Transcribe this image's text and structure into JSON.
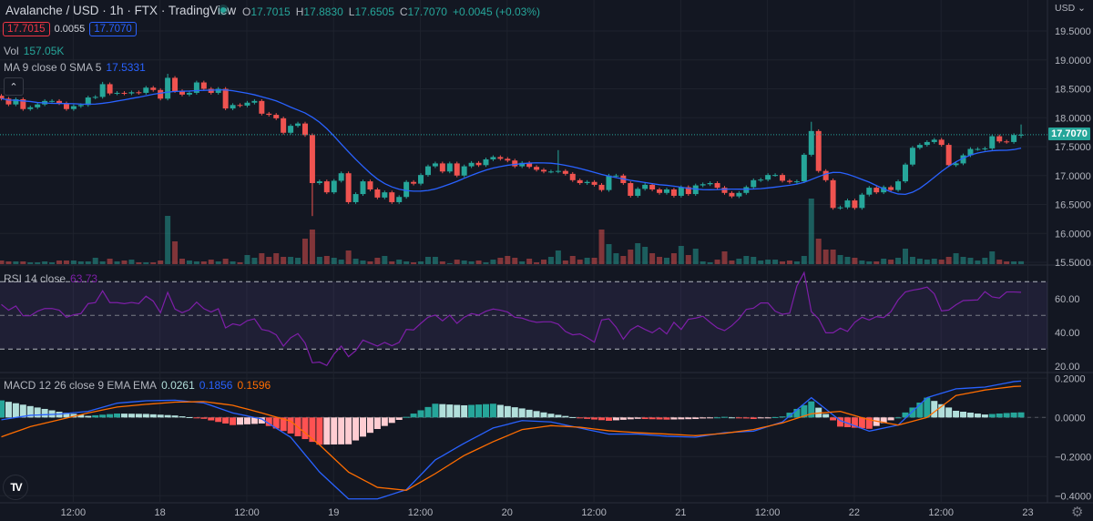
{
  "header": {
    "title": "Avalanche / USD · 1h · FTX · TradingView",
    "ohlc": {
      "o_label": "O",
      "o": "17.7015",
      "h_label": "H",
      "h": "17.8830",
      "l_label": "L",
      "l": "17.6505",
      "c_label": "C",
      "c": "17.7070",
      "change": "+0.0045 (+0.03%)"
    },
    "sell_price": "17.7015",
    "spread": "0.0055",
    "buy_price": "17.7070",
    "market_status_icon": "green-dot"
  },
  "legends": {
    "vol_label": "Vol",
    "vol_value": "157.05K",
    "ma_label": "MA 9 close 0 SMA 5",
    "ma_value": "17.5331",
    "rsi_label": "RSI 14 close",
    "rsi_value": "63.73",
    "macd_label": "MACD 12 26 close 9 EMA EMA",
    "macd_hist": "0.0261",
    "macd_value": "0.1856",
    "macd_signal": "0.1596",
    "collapse_icon": "chevron-up"
  },
  "axis": {
    "currency": "USD ⌄",
    "current_price": "17.7070",
    "logo": "TV",
    "settings_icon": "gear"
  },
  "colors": {
    "up": "#26a69a",
    "down": "#ef5350",
    "ma": "#2962ff",
    "rsi": "#7e1fa8",
    "macd": "#2962ff",
    "signal": "#ff6d00",
    "bg": "#131722"
  },
  "chart_data": [
    {
      "type": "candlestick",
      "title": "Avalanche / USD · 1h · FTX",
      "first_open": 18.38,
      "close": [
        18.33,
        18.23,
        18.32,
        18.15,
        18.18,
        18.23,
        18.29,
        18.29,
        18.25,
        18.15,
        18.2,
        18.22,
        18.35,
        18.36,
        18.58,
        18.42,
        18.43,
        18.42,
        18.44,
        18.43,
        18.52,
        18.48,
        18.33,
        18.69,
        18.46,
        18.4,
        18.43,
        18.61,
        18.5,
        18.43,
        18.5,
        18.16,
        18.22,
        18.21,
        18.26,
        18.29,
        18.07,
        18.05,
        17.99,
        17.74,
        17.86,
        17.9,
        17.7,
        16.87,
        16.9,
        16.71,
        16.91,
        17.04,
        16.54,
        16.68,
        16.9,
        16.76,
        16.62,
        16.71,
        16.54,
        16.63,
        16.89,
        16.86,
        17.01,
        17.16,
        17.21,
        17.07,
        17.21,
        17.0,
        17.16,
        17.22,
        17.18,
        17.28,
        17.32,
        17.29,
        17.26,
        17.16,
        17.22,
        17.15,
        17.1,
        17.07,
        17.07,
        17.08,
        17.03,
        16.92,
        16.87,
        16.89,
        16.84,
        16.75,
        17.0,
        17.0,
        16.87,
        16.65,
        16.77,
        16.84,
        16.76,
        16.7,
        16.76,
        16.65,
        16.8,
        16.68,
        16.83,
        16.85,
        16.87,
        16.79,
        16.7,
        16.64,
        16.7,
        16.8,
        16.92,
        16.93,
        17.01,
        17.01,
        16.91,
        16.89,
        16.9,
        17.36,
        17.77,
        17.08,
        16.92,
        16.44,
        16.45,
        16.57,
        16.44,
        16.67,
        16.79,
        16.71,
        16.8,
        16.75,
        16.9,
        17.19,
        17.48,
        17.53,
        17.58,
        17.62,
        17.53,
        17.18,
        17.21,
        17.35,
        17.46,
        17.46,
        17.47,
        17.68,
        17.59,
        17.58,
        17.7015,
        17.707
      ],
      "extremes": [
        {
          "index": 14,
          "high": 18.62
        },
        {
          "index": 23,
          "high": 18.76
        },
        {
          "index": 43,
          "low": 16.3
        },
        {
          "index": 77,
          "high": 17.44
        },
        {
          "index": 112,
          "high": 17.93
        },
        {
          "index": 141,
          "high": 17.883,
          "low": 17.6505
        }
      ],
      "volume_k": [
        200,
        150,
        150,
        150,
        100,
        100,
        150,
        100,
        200,
        200,
        200,
        150,
        150,
        350,
        150,
        300,
        150,
        200,
        250,
        100,
        100,
        100,
        200,
        2650,
        1250,
        300,
        200,
        150,
        150,
        250,
        150,
        300,
        150,
        100,
        500,
        350,
        600,
        400,
        600,
        400,
        400,
        350,
        1400,
        1900,
        400,
        450,
        350,
        250,
        750,
        300,
        200,
        150,
        350,
        450,
        150,
        250,
        150,
        100,
        150,
        400,
        400,
        150,
        50,
        250,
        200,
        150,
        200,
        100,
        250,
        350,
        450,
        350,
        150,
        300,
        100,
        250,
        400,
        750,
        200,
        450,
        250,
        350,
        350,
        1900,
        1100,
        600,
        450,
        800,
        1150,
        950,
        600,
        400,
        350,
        600,
        1000,
        500,
        850,
        150,
        100,
        250,
        700,
        200,
        300,
        450,
        400,
        200,
        250,
        250,
        150,
        200,
        150,
        450,
        3600,
        1400,
        800,
        800,
        500,
        400,
        350,
        200,
        150,
        150,
        300,
        250,
        350,
        850,
        400,
        300,
        250,
        300,
        250,
        400,
        600,
        400,
        350,
        200,
        350,
        700,
        250,
        150,
        150,
        157.05
      ],
      "ma": {
        "length": 9,
        "smoothing": 5
      },
      "ylim": [
        15.3,
        19.8
      ],
      "y_ticks": [
        "19.5000",
        "19.0000",
        "18.5000",
        "18.0000",
        "17.5000",
        "17.0000",
        "16.5000",
        "16.0000",
        "15.5000"
      ],
      "x_ticks": [
        {
          "label": "12:00",
          "index": 10
        },
        {
          "label": "18",
          "index": 22
        },
        {
          "label": "12:00",
          "index": 34
        },
        {
          "label": "19",
          "index": 46
        },
        {
          "label": "12:00",
          "index": 58
        },
        {
          "label": "20",
          "index": 70
        },
        {
          "label": "12:00",
          "index": 82
        },
        {
          "label": "21",
          "index": 94
        },
        {
          "label": "12:00",
          "index": 106
        },
        {
          "label": "22",
          "index": 118
        },
        {
          "label": "12:00",
          "index": 130
        },
        {
          "label": "23",
          "index": 142
        }
      ]
    },
    {
      "type": "line",
      "title": "RSI 14 close",
      "values": [
        56.5,
        53.1,
        55.6,
        49.8,
        49.8,
        52.5,
        54.1,
        54.1,
        53.1,
        48.9,
        50.4,
        51.1,
        57.0,
        57.6,
        64.6,
        57.6,
        57.6,
        57.0,
        57.7,
        57.0,
        61.4,
        58.5,
        51.6,
        63.7,
        53.8,
        51.6,
        53.4,
        57.9,
        54.0,
        52.0,
        54.0,
        42.6,
        45.0,
        44.1,
        46.9,
        48.0,
        41.7,
        40.8,
        38.5,
        31.8,
        36.7,
        39.2,
        33.6,
        21.9,
        22.3,
        20.3,
        27.1,
        31.8,
        25.5,
        29.1,
        35.4,
        33.6,
        31.8,
        34.0,
        32.0,
        34.0,
        41.7,
        41.4,
        45.3,
        48.9,
        50.2,
        46.8,
        50.2,
        45.3,
        48.9,
        51.1,
        50.2,
        52.5,
        53.8,
        53.1,
        52.0,
        48.9,
        48.4,
        46.9,
        45.9,
        46.2,
        46.2,
        44.8,
        40.5,
        38.5,
        39.0,
        36.8,
        34.1,
        47.3,
        48.0,
        43.0,
        35.9,
        41.4,
        43.9,
        41.7,
        39.7,
        42.6,
        39.0,
        45.9,
        41.7,
        47.7,
        48.4,
        49.5,
        45.9,
        42.6,
        41.0,
        43.9,
        48.0,
        53.6,
        54.3,
        57.4,
        57.4,
        52.5,
        50.7,
        51.3,
        67.5,
        75.4,
        52.2,
        48.0,
        39.7,
        39.7,
        42.4,
        40.5,
        45.9,
        48.9,
        47.3,
        49.3,
        48.7,
        52.2,
        59.2,
        63.9,
        65.0,
        65.7,
        66.8,
        62.8,
        52.7,
        53.2,
        56.3,
        58.8,
        59.0,
        59.2,
        64.1,
        61.0,
        60.3,
        63.9,
        63.9,
        63.73
      ],
      "band": [
        30,
        70
      ],
      "midline": 50,
      "ylim": [
        13,
        78
      ],
      "y_ticks": [
        "60.00",
        "40.00",
        "20.00"
      ]
    },
    {
      "type": "bar",
      "title": "MACD 12 26 close 9 EMA EMA",
      "sample_index": [
        0,
        4,
        8,
        12,
        16,
        20,
        24,
        28,
        32,
        36,
        40,
        44,
        48,
        52,
        56,
        60,
        64,
        68,
        72,
        76,
        80,
        84,
        88,
        92,
        96,
        100,
        104,
        108,
        112,
        116,
        120,
        124,
        128,
        132,
        136,
        140,
        141
      ],
      "macd": [
        -0.012,
        0.011,
        0.017,
        0.031,
        0.073,
        0.085,
        0.088,
        0.074,
        0.023,
        -0.008,
        -0.101,
        -0.279,
        -0.416,
        -0.416,
        -0.369,
        -0.217,
        -0.132,
        -0.054,
        -0.016,
        -0.023,
        -0.054,
        -0.085,
        -0.085,
        -0.096,
        -0.101,
        -0.078,
        -0.07,
        -0.023,
        0.101,
        -0.016,
        -0.07,
        -0.039,
        0.101,
        0.146,
        0.155,
        0.183,
        0.1856
      ],
      "signal": [
        -0.099,
        -0.047,
        -0.012,
        0.023,
        0.053,
        0.067,
        0.078,
        0.081,
        0.062,
        0.023,
        -0.019,
        -0.14,
        -0.279,
        -0.357,
        -0.372,
        -0.287,
        -0.194,
        -0.124,
        -0.062,
        -0.042,
        -0.05,
        -0.068,
        -0.078,
        -0.085,
        -0.093,
        -0.081,
        -0.062,
        -0.028,
        0.019,
        0.031,
        -0.012,
        -0.039,
        0.0,
        0.112,
        0.14,
        0.158,
        0.1596
      ],
      "ylim": [
        -0.44,
        0.22
      ],
      "y_ticks": [
        "0.2000",
        "0.0000",
        "−0.2000",
        "−0.4000"
      ]
    }
  ]
}
